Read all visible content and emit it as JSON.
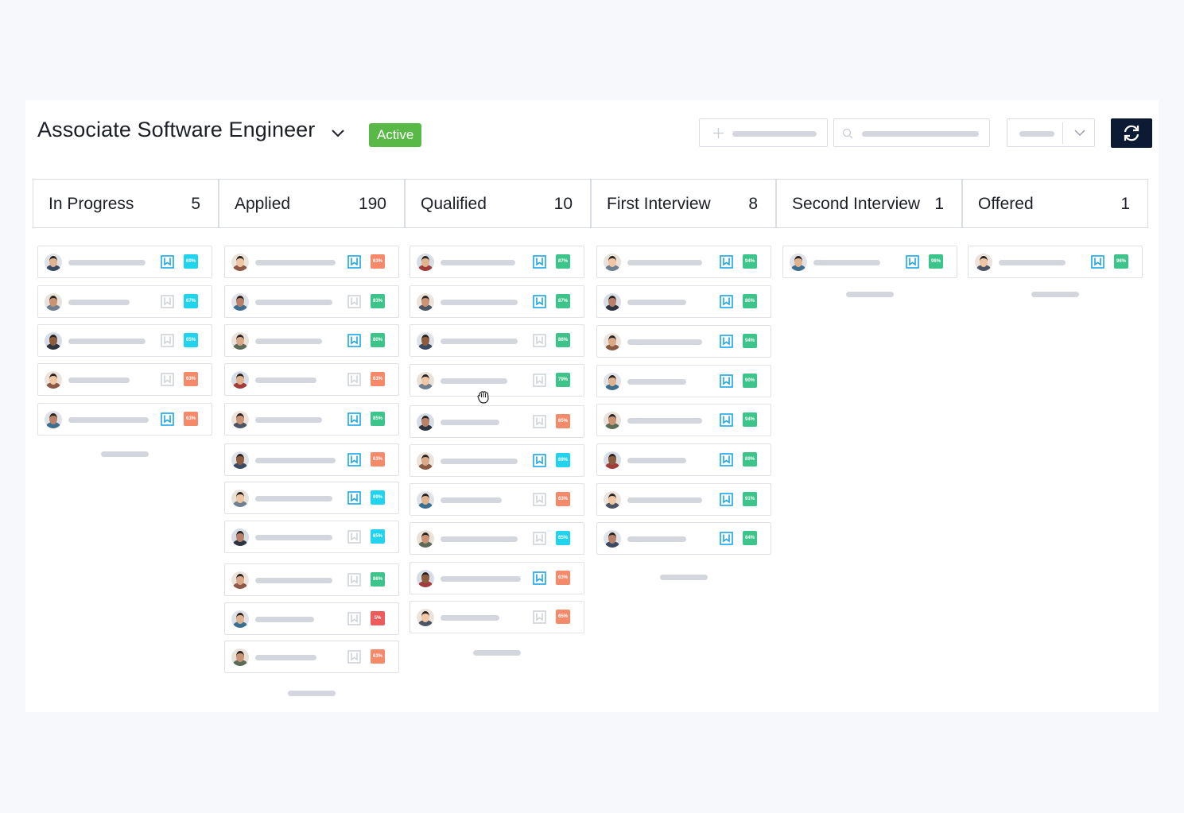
{
  "header": {
    "job_title": "Associate Software Engineer",
    "status": "Active",
    "add_icon": "plus-icon",
    "search_icon": "search-icon",
    "dropdown_icon": "chevron-down-icon",
    "refresh_icon": "refresh-icon"
  },
  "colors": {
    "active": "#58b947",
    "refresh_bg": "#0c1b33",
    "score_green": "#3cc48a",
    "score_cyan": "#22d3ee",
    "score_orange": "#f58a6b",
    "score_red": "#ef5b5b",
    "bookmark_on": "#1aa6e8",
    "bookmark_off": "#cfd3d9"
  },
  "stages": [
    {
      "name": "In Progress",
      "count": "5",
      "cards": [
        {
          "score": "69%",
          "color": "cyan",
          "bookmarked": true
        },
        {
          "score": "67%",
          "color": "cyan",
          "bookmarked": false
        },
        {
          "score": "65%",
          "color": "cyan",
          "bookmarked": false
        },
        {
          "score": "63%",
          "color": "orange",
          "bookmarked": false
        },
        {
          "score": "63%",
          "color": "orange",
          "bookmarked": true
        }
      ]
    },
    {
      "name": "Applied",
      "count": "190",
      "cards": [
        {
          "score": "63%",
          "color": "orange",
          "bookmarked": true
        },
        {
          "score": "83%",
          "color": "green",
          "bookmarked": false
        },
        {
          "score": "80%",
          "color": "green",
          "bookmarked": true
        },
        {
          "score": "63%",
          "color": "orange",
          "bookmarked": false
        },
        {
          "score": "85%",
          "color": "green",
          "bookmarked": true
        },
        {
          "score": "63%",
          "color": "orange",
          "bookmarked": true
        },
        {
          "score": "69%",
          "color": "cyan",
          "bookmarked": true
        },
        {
          "score": "65%",
          "color": "cyan",
          "bookmarked": false
        },
        {
          "score": "86%",
          "color": "green",
          "bookmarked": false
        },
        {
          "score": "5%",
          "color": "red",
          "bookmarked": false
        },
        {
          "score": "63%",
          "color": "orange",
          "bookmarked": false
        }
      ]
    },
    {
      "name": "Qualified",
      "count": "10",
      "cards": [
        {
          "score": "87%",
          "color": "green",
          "bookmarked": true
        },
        {
          "score": "87%",
          "color": "green",
          "bookmarked": true
        },
        {
          "score": "86%",
          "color": "green",
          "bookmarked": false
        },
        {
          "score": "79%",
          "color": "green",
          "bookmarked": false
        },
        {
          "score": "65%",
          "color": "orange",
          "bookmarked": false
        },
        {
          "score": "69%",
          "color": "cyan",
          "bookmarked": true
        },
        {
          "score": "63%",
          "color": "orange",
          "bookmarked": false
        },
        {
          "score": "65%",
          "color": "cyan",
          "bookmarked": false
        },
        {
          "score": "63%",
          "color": "orange",
          "bookmarked": true
        },
        {
          "score": "65%",
          "color": "orange",
          "bookmarked": false
        }
      ]
    },
    {
      "name": "First Interview",
      "count": "8",
      "cards": [
        {
          "score": "94%",
          "color": "green",
          "bookmarked": true
        },
        {
          "score": "86%",
          "color": "green",
          "bookmarked": true
        },
        {
          "score": "94%",
          "color": "green",
          "bookmarked": true
        },
        {
          "score": "90%",
          "color": "green",
          "bookmarked": true
        },
        {
          "score": "94%",
          "color": "green",
          "bookmarked": true
        },
        {
          "score": "89%",
          "color": "green",
          "bookmarked": true
        },
        {
          "score": "91%",
          "color": "green",
          "bookmarked": true
        },
        {
          "score": "84%",
          "color": "green",
          "bookmarked": true
        }
      ]
    },
    {
      "name": "Second Interview",
      "count": "1",
      "cards": [
        {
          "score": "96%",
          "color": "green",
          "bookmarked": true
        }
      ]
    },
    {
      "name": "Offered",
      "count": "1",
      "cards": [
        {
          "score": "96%",
          "color": "green",
          "bookmarked": true
        }
      ]
    }
  ]
}
